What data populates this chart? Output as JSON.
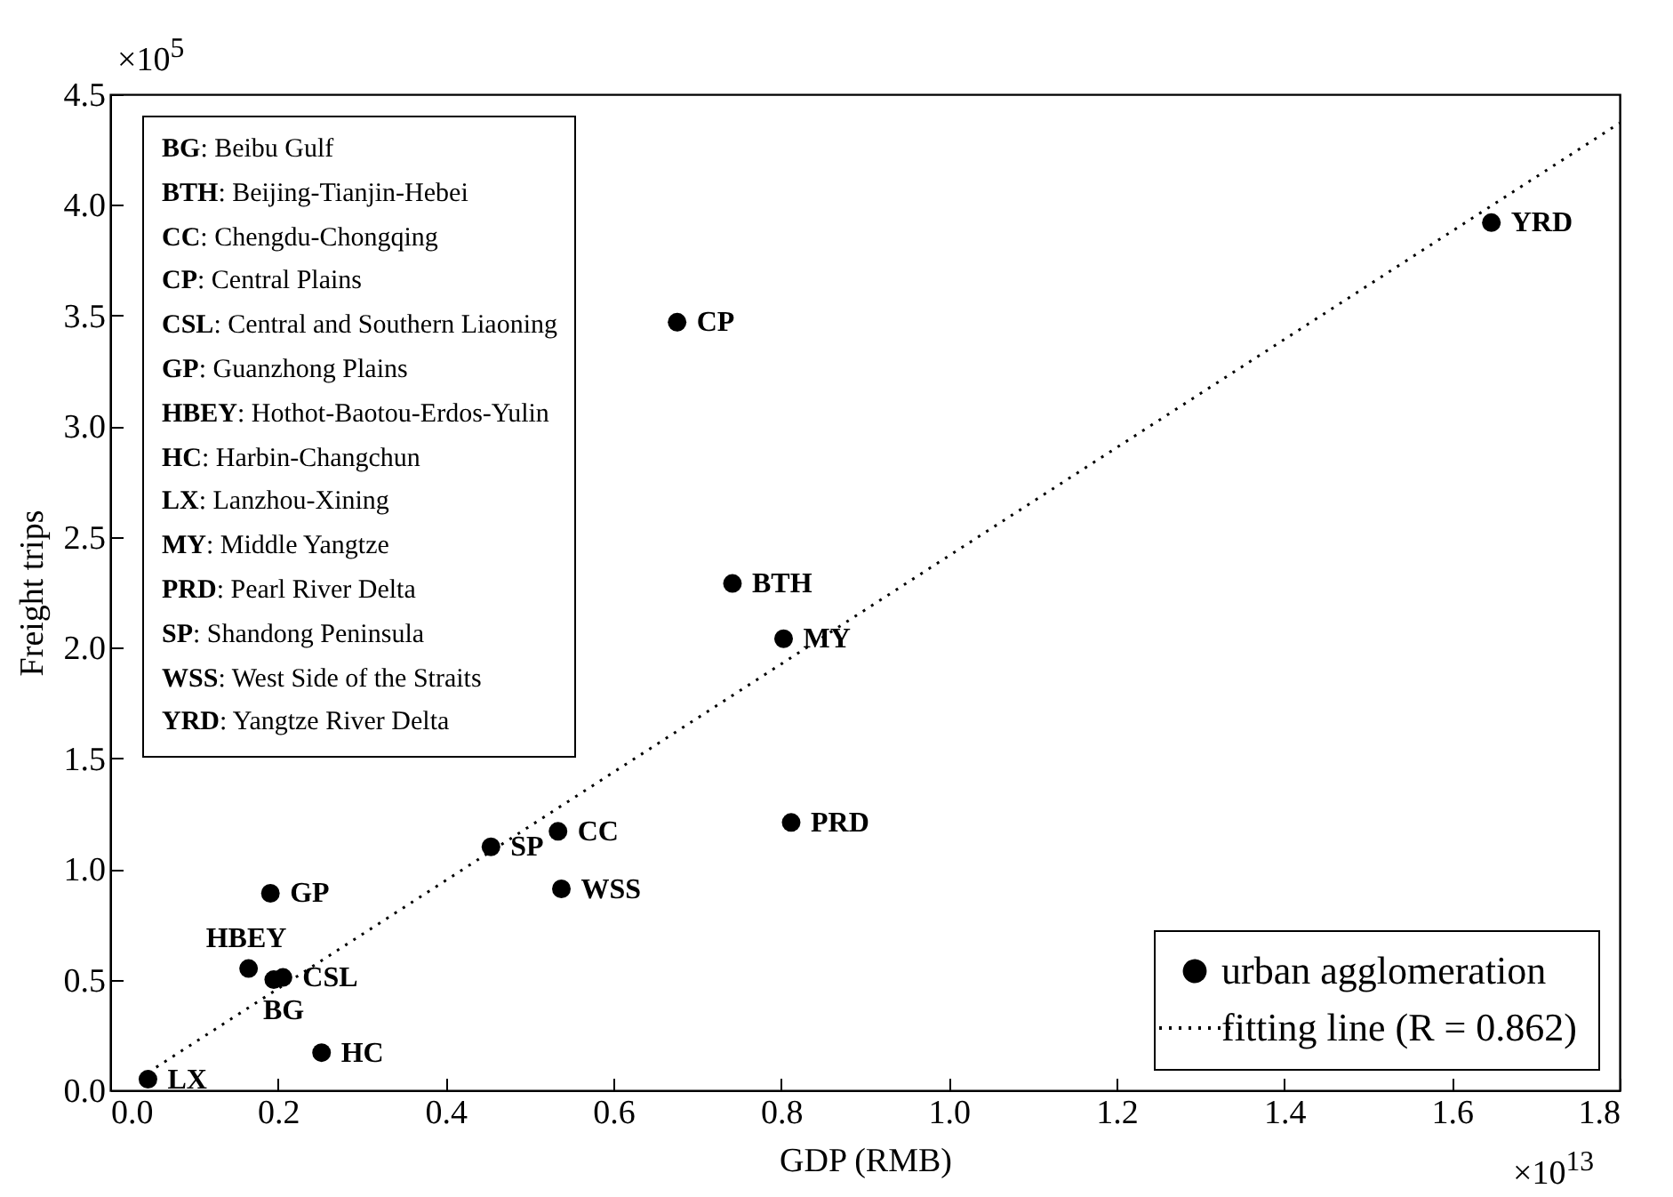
{
  "chart_data": {
    "type": "scatter",
    "xlabel": "GDP (RMB)",
    "ylabel": "Freight trips",
    "xlim": [
      0,
      1.8
    ],
    "ylim": [
      0,
      4.5
    ],
    "xticks": [
      {
        "value": 0,
        "label": "0.0"
      },
      {
        "value": 0.2,
        "label": "0.2"
      },
      {
        "value": 0.4,
        "label": "0.4"
      },
      {
        "value": 0.6,
        "label": "0.6"
      },
      {
        "value": 0.8,
        "label": "0.8"
      },
      {
        "value": 1,
        "label": "1.0"
      },
      {
        "value": 1.2,
        "label": "1.2"
      },
      {
        "value": 1.4,
        "label": "1.4"
      },
      {
        "value": 1.6,
        "label": "1.6"
      },
      {
        "value": 1.8,
        "label": "1.8"
      }
    ],
    "yticks": [
      {
        "value": 0,
        "label": "0.0"
      },
      {
        "value": 0.5,
        "label": "0.5"
      },
      {
        "value": 1,
        "label": "1.0"
      },
      {
        "value": 1.5,
        "label": "1.5"
      },
      {
        "value": 2,
        "label": "2.0"
      },
      {
        "value": 2.5,
        "label": "2.5"
      },
      {
        "value": 3,
        "label": "3.0"
      },
      {
        "value": 3.5,
        "label": "3.5"
      },
      {
        "value": 4,
        "label": "4.0"
      },
      {
        "value": 4.5,
        "label": "4.5"
      }
    ],
    "grid": false,
    "legend": "bottom right",
    "series": [
      {
        "name": "urban agglomeration",
        "marker": "circle",
        "color": "#000000",
        "x": [
          1.647,
          0.676,
          0.742,
          0.803,
          0.812,
          0.534,
          0.454,
          0.538,
          0.191,
          0.165,
          0.206,
          0.195,
          0.252,
          0.045
        ],
        "values": [
          3.92,
          3.47,
          2.29,
          2.04,
          1.21,
          1.17,
          1.1,
          0.91,
          0.89,
          0.55,
          0.51,
          0.5,
          0.17,
          0.05
        ]
      },
      {
        "name": "fitting line (R = 0.862)",
        "type": "line",
        "line_style": "dotted",
        "color": "#000000",
        "x": [
          0.045,
          1.8
        ],
        "values": [
          0.08,
          4.37
        ]
      }
    ],
    "annotations": [
      {
        "text": "YRD",
        "x": 1.647,
        "y": 3.92
      },
      {
        "text": "CP",
        "x": 0.676,
        "y": 3.47
      },
      {
        "text": "BTH",
        "x": 0.742,
        "y": 2.29
      },
      {
        "text": "MY",
        "x": 0.803,
        "y": 2.04
      },
      {
        "text": "PRD",
        "x": 0.812,
        "y": 1.21
      },
      {
        "text": "CC",
        "x": 0.534,
        "y": 1.17
      },
      {
        "text": "SP",
        "x": 0.454,
        "y": 1.1
      },
      {
        "text": "WSS",
        "x": 0.538,
        "y": 0.91
      },
      {
        "text": "GP",
        "x": 0.191,
        "y": 0.89
      },
      {
        "text": "HBEY",
        "x": 0.165,
        "y": 0.55
      },
      {
        "text": "CSL",
        "x": 0.206,
        "y": 0.51
      },
      {
        "text": "BG",
        "x": 0.195,
        "y": 0.5
      },
      {
        "text": "HC",
        "x": 0.252,
        "y": 0.17
      },
      {
        "text": "LX",
        "x": 0.045,
        "y": 0.05
      },
      "BG: Beibu Gulf",
      "BTH: Beijing-Tianjin-Hebei",
      "CC: Chengdu-Chongqing",
      "CP: Central Plains",
      "CSL: Central and Southern Liaoning",
      "GP: Guanzhong Plains",
      "HBEY: Hothot-Baotou-Erdos-Yulin",
      "HC: Harbin-Changchun",
      "LX: Lanzhou-Xining",
      "MY: Middle Yangtze",
      "PRD: Pearl River Delta",
      "SP: Shandong Peninsula",
      "WSS: West Side of the Straits",
      "YRD: Yangtze River Delta",
      "×10$^{5}$",
      "×10$^{13}$"
    ]
  }
}
